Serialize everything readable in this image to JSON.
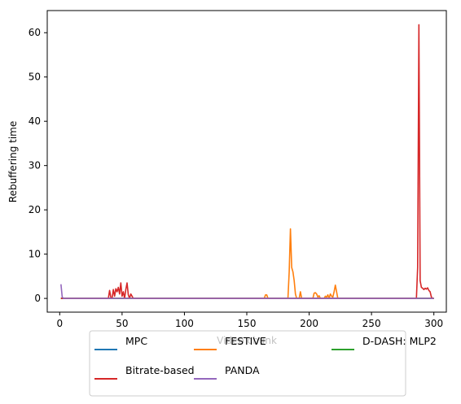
{
  "chart_data": {
    "type": "line",
    "title": "",
    "xlabel": "Video chunk",
    "ylabel": "Rebuffering time",
    "xlim": [
      -10,
      310
    ],
    "ylim": [
      -3.1,
      65
    ],
    "xticks": [
      0,
      50,
      100,
      150,
      200,
      250,
      300
    ],
    "yticks": [
      0,
      10,
      20,
      30,
      40,
      50,
      60
    ],
    "grid": false,
    "legend_position": "bottom-center",
    "series": [
      {
        "name": "MPC",
        "color": "#1f77b4",
        "points": [
          [
            1,
            0
          ],
          [
            300,
            0
          ]
        ]
      },
      {
        "name": "FESTIVE",
        "color": "#ff7f0e",
        "points": [
          [
            1,
            0
          ],
          [
            164,
            0
          ],
          [
            165,
            0.8
          ],
          [
            166,
            0.8
          ],
          [
            167,
            0
          ],
          [
            183,
            0
          ],
          [
            184,
            6
          ],
          [
            185,
            15.7
          ],
          [
            186,
            7
          ],
          [
            187,
            6
          ],
          [
            188,
            4
          ],
          [
            189,
            1
          ],
          [
            190,
            0
          ],
          [
            192,
            0
          ],
          [
            193,
            1.5
          ],
          [
            194,
            0
          ],
          [
            203,
            0
          ],
          [
            204,
            1.2
          ],
          [
            205,
            1.3
          ],
          [
            206,
            1
          ],
          [
            207,
            0.3
          ],
          [
            208,
            0.6
          ],
          [
            209,
            0
          ],
          [
            212,
            0
          ],
          [
            213,
            0.5
          ],
          [
            214,
            0.3
          ],
          [
            215,
            0.8
          ],
          [
            216,
            0
          ],
          [
            217,
            1
          ],
          [
            218,
            0.5
          ],
          [
            219,
            0.3
          ],
          [
            220,
            1.5
          ],
          [
            221,
            3
          ],
          [
            222,
            1.5
          ],
          [
            223,
            0
          ],
          [
            300,
            0
          ]
        ]
      },
      {
        "name": "D-DASH: MLP2",
        "color": "#2ca02c",
        "points": [
          [
            1,
            0
          ],
          [
            300,
            0
          ]
        ]
      },
      {
        "name": "Bitrate-based",
        "color": "#d62728",
        "points": [
          [
            1,
            0
          ],
          [
            39,
            0
          ],
          [
            40,
            1.8
          ],
          [
            41,
            0.2
          ],
          [
            42,
            0
          ],
          [
            43,
            2
          ],
          [
            44,
            0.5
          ],
          [
            45,
            2.2
          ],
          [
            46,
            1.5
          ],
          [
            47,
            2.5
          ],
          [
            48,
            1
          ],
          [
            49,
            3.5
          ],
          [
            50,
            0.5
          ],
          [
            51,
            1.5
          ],
          [
            52,
            0
          ],
          [
            53,
            2
          ],
          [
            54,
            3.5
          ],
          [
            55,
            0.8
          ],
          [
            56,
            0
          ],
          [
            57,
            1
          ],
          [
            58,
            0.5
          ],
          [
            59,
            0
          ],
          [
            286,
            0
          ],
          [
            287,
            7
          ],
          [
            288,
            61.8
          ],
          [
            289,
            4
          ],
          [
            290,
            2.5
          ],
          [
            291,
            2.3
          ],
          [
            292,
            2
          ],
          [
            293,
            2.3
          ],
          [
            294,
            2.1
          ],
          [
            295,
            2.4
          ],
          [
            296,
            1.8
          ],
          [
            297,
            1.5
          ],
          [
            298,
            0.3
          ],
          [
            299,
            0
          ],
          [
            300,
            0
          ]
        ]
      },
      {
        "name": "PANDA",
        "color": "#9467bd",
        "points": [
          [
            1,
            3.2
          ],
          [
            2,
            0.3
          ],
          [
            3,
            0
          ],
          [
            300,
            0
          ]
        ]
      }
    ]
  }
}
